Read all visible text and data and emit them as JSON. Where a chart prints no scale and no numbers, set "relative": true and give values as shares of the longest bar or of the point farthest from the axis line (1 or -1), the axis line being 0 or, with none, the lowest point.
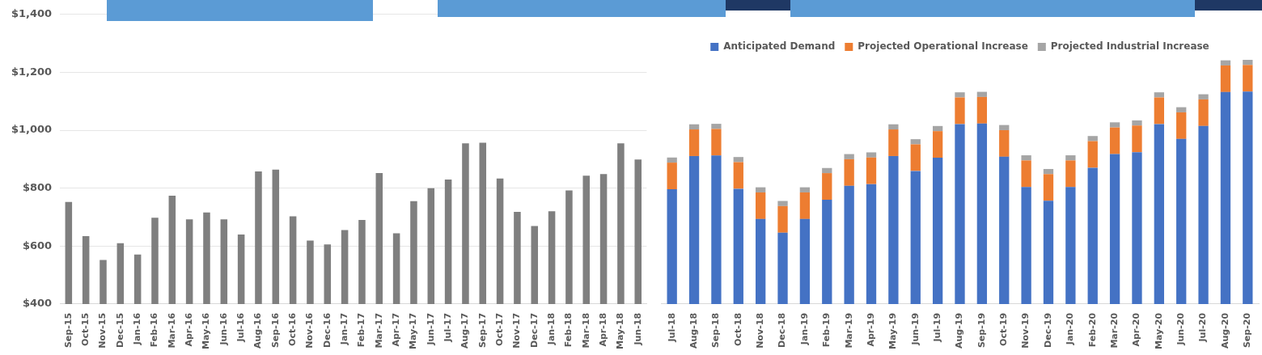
{
  "chart_data": [
    {
      "type": "bar",
      "categories": [
        "Sep-15",
        "Oct-15",
        "Nov-15",
        "Dec-15",
        "Jan-16",
        "Feb-16",
        "Mar-16",
        "Apr-16",
        "May-16",
        "Jun-16",
        "Jul-16",
        "Aug-16",
        "Sep-16",
        "Oct-16",
        "Nov-16",
        "Dec-16",
        "Jan-17",
        "Feb-17",
        "Mar-17",
        "Apr-17",
        "May-17",
        "Jun-17",
        "Jul-17",
        "Aug-17",
        "Sep-17",
        "Oct-17",
        "Nov-17",
        "Dec-17",
        "Jan-18",
        "Feb-18",
        "Mar-18",
        "Apr-18",
        "May-18",
        "Jun-18"
      ],
      "values": [
        752,
        634,
        552,
        610,
        571,
        698,
        774,
        692,
        716,
        692,
        640,
        858,
        864,
        703,
        619,
        606,
        655,
        690,
        852,
        644,
        755,
        800,
        830,
        955,
        957,
        833,
        718,
        669,
        720,
        792,
        843,
        849,
        955,
        899
      ],
      "color": "#7f7f7f",
      "ylim": [
        400,
        1400
      ],
      "yticks": [
        {
          "value": 400,
          "label": "$400"
        },
        {
          "value": 600,
          "label": "$600"
        },
        {
          "value": 800,
          "label": "$800"
        },
        {
          "value": 1000,
          "label": "$1,000"
        },
        {
          "value": 1200,
          "label": "$1,200"
        },
        {
          "value": 1400,
          "label": "$1,400"
        }
      ],
      "grid": "y"
    },
    {
      "type": "bar",
      "stacked": true,
      "relative": true,
      "legend": "top",
      "categories": [
        "Jul-18",
        "Aug-18",
        "Sep-18",
        "Oct-18",
        "Nov-18",
        "Dec-18",
        "Jan-19",
        "Feb-19",
        "Mar-19",
        "Apr-19",
        "May-19",
        "Jun-19",
        "Jul-19",
        "Aug-19",
        "Sep-19",
        "Oct-19",
        "Nov-19",
        "Dec-19",
        "Jan-20",
        "Feb-20",
        "Mar-20",
        "Apr-20",
        "May-20",
        "Jun-20",
        "Jul-20",
        "Aug-20",
        "Sep-20"
      ],
      "series": [
        {
          "name": "Anticipated Demand",
          "color": "#4472c4",
          "values": [
            0.47,
            0.606,
            0.608,
            0.472,
            0.348,
            0.292,
            0.348,
            0.427,
            0.484,
            0.491,
            0.606,
            0.545,
            0.599,
            0.737,
            0.739,
            0.603,
            0.479,
            0.423,
            0.479,
            0.558,
            0.614,
            0.622,
            0.737,
            0.676,
            0.729,
            0.868,
            0.87
          ]
        },
        {
          "name": "Projected Operational Increase",
          "color": "#ed7d31",
          "values": [
            0.109,
            0.109,
            0.109,
            0.109,
            0.109,
            0.109,
            0.109,
            0.109,
            0.109,
            0.109,
            0.109,
            0.109,
            0.109,
            0.109,
            0.109,
            0.109,
            0.109,
            0.109,
            0.109,
            0.109,
            0.109,
            0.109,
            0.109,
            0.109,
            0.109,
            0.109,
            0.109
          ]
        },
        {
          "name": "Projected Industrial Increase",
          "color": "#a5a5a5",
          "values": [
            0.021,
            0.021,
            0.021,
            0.021,
            0.021,
            0.021,
            0.021,
            0.021,
            0.021,
            0.021,
            0.021,
            0.021,
            0.021,
            0.021,
            0.021,
            0.021,
            0.021,
            0.021,
            0.021,
            0.021,
            0.021,
            0.021,
            0.021,
            0.021,
            0.021,
            0.021,
            0.021
          ]
        }
      ]
    }
  ]
}
